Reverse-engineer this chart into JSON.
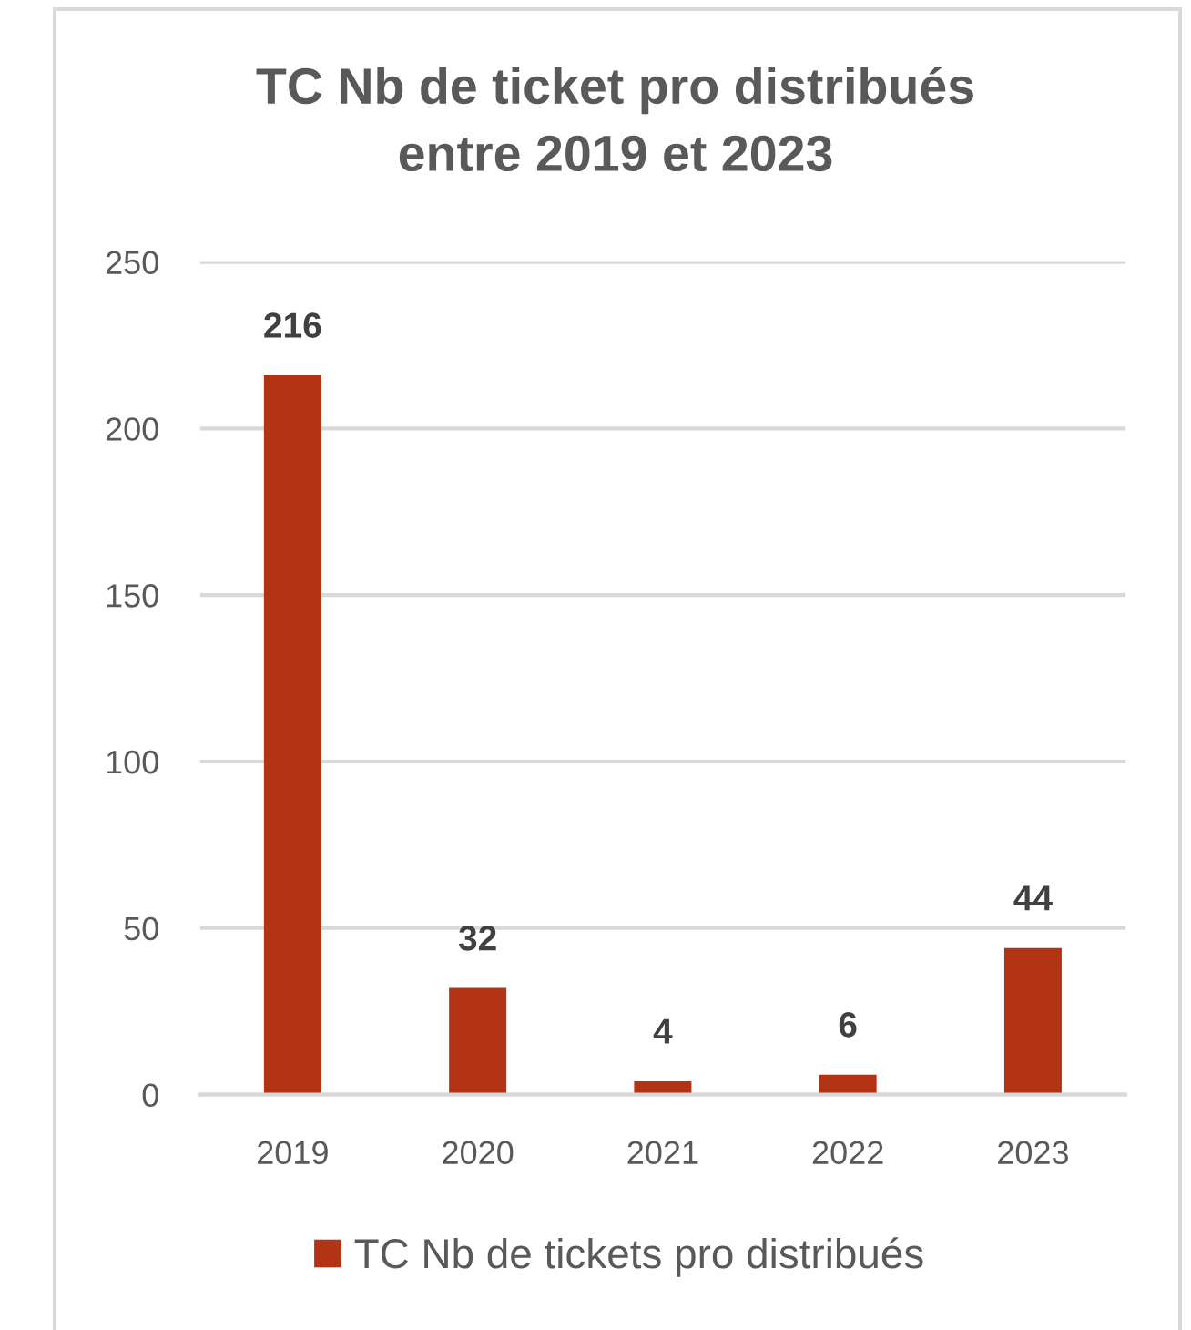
{
  "chart_data": {
    "type": "bar",
    "title": "TC Nb de ticket pro distribués\nentre 2019 et 2023",
    "categories": [
      "2019",
      "2020",
      "2021",
      "2022",
      "2023"
    ],
    "series": [
      {
        "name": "TC Nb de tickets pro distribués",
        "color": "#b33315",
        "values": [
          216,
          32,
          4,
          6,
          44
        ]
      }
    ],
    "ylim": [
      0,
      250
    ],
    "yticks": [
      0,
      50,
      100,
      150,
      200,
      250
    ],
    "grid": "y",
    "legend": "bottom",
    "data_labels": true
  }
}
